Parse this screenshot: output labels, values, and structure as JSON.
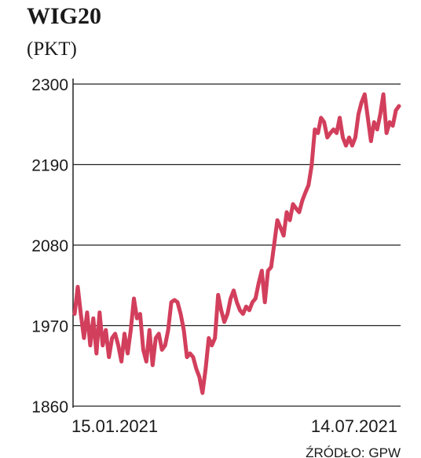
{
  "chart_data": {
    "type": "line",
    "title": "WIG20",
    "subtitle": "(PKT)",
    "source": "ŹRÓDŁO: GPW",
    "color": "#d23f5c",
    "grid": true,
    "ylim": [
      1860,
      2300
    ],
    "yticks": [
      1860,
      1970,
      2080,
      2190,
      2300
    ],
    "categories": [
      "15.01.2021",
      null,
      null,
      null,
      null,
      null,
      null,
      null,
      null,
      null,
      null,
      null,
      null,
      null,
      null,
      null,
      null,
      null,
      null,
      null,
      null,
      null,
      null,
      null,
      null,
      null,
      null,
      null,
      null,
      null,
      null,
      null,
      null,
      null,
      null,
      null,
      null,
      null,
      null,
      null,
      null,
      null,
      null,
      null,
      null,
      null,
      null,
      null,
      null,
      null,
      null,
      null,
      null,
      null,
      null,
      null,
      null,
      null,
      null,
      null,
      null,
      null,
      null,
      null,
      null,
      null,
      null,
      null,
      null,
      null,
      null,
      null,
      null,
      null,
      null,
      null,
      null,
      null,
      null,
      null,
      null,
      null,
      null,
      null,
      null,
      null,
      null,
      null,
      null,
      null,
      null,
      null,
      null,
      null,
      null,
      null,
      null,
      null,
      null,
      null,
      null,
      null,
      null,
      null,
      "14.07.2021"
    ],
    "values": [
      1986,
      2023,
      1986,
      1953,
      1988,
      1943,
      1980,
      1932,
      1988,
      1943,
      1964,
      1927,
      1953,
      1959,
      1943,
      1921,
      1959,
      1932,
      1964,
      2007,
      1980,
      1986,
      1937,
      1921,
      1964,
      1916,
      1953,
      1959,
      1937,
      1943,
      1964,
      2002,
      2005,
      2002,
      1986,
      1964,
      1927,
      1932,
      1927,
      1911,
      1900,
      1878,
      1911,
      1953,
      1943,
      1953,
      2012,
      1991,
      1975,
      1986,
      2007,
      2018,
      2002,
      1991,
      1986,
      1996,
      1991,
      2002,
      2007,
      2028,
      2045,
      2002,
      2045,
      2050,
      2082,
      2114,
      2104,
      2093,
      2125,
      2114,
      2136,
      2130,
      2125,
      2141,
      2152,
      2162,
      2189,
      2238,
      2233,
      2254,
      2248,
      2227,
      2233,
      2238,
      2233,
      2254,
      2227,
      2216,
      2227,
      2216,
      2227,
      2259,
      2275,
      2286,
      2254,
      2222,
      2248,
      2238,
      2259,
      2286,
      2233,
      2248,
      2243,
      2264,
      2270
    ]
  }
}
